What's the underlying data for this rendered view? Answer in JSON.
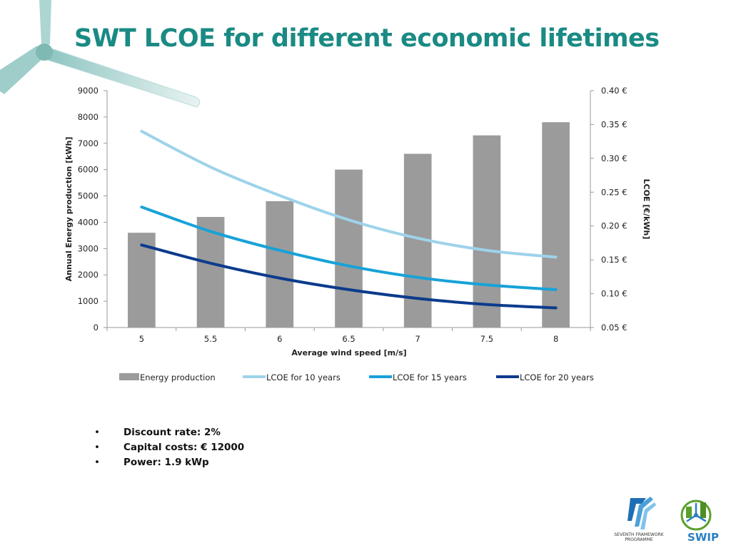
{
  "slide": {
    "title": "SWT LCOE for different economic lifetimes",
    "bullets": [
      "Discount rate: 2%",
      "Capital costs: € 12000",
      "Power: 1.9 kWp"
    ],
    "bullet_marker": "•"
  },
  "logos": {
    "fp7_text_line1": "SEVENTH FRAMEWORK",
    "fp7_text_line2": "PROGRAMME",
    "swip_text": "SWIP"
  },
  "colors": {
    "title": "#1a8a84",
    "bars": "#9b9b9b",
    "lcoe10": "#9dd3ea",
    "lcoe15": "#17a2d8",
    "lcoe20": "#0c3b8c"
  },
  "chart_data": {
    "type": "bar",
    "categories": [
      "5",
      "5.5",
      "6",
      "6.5",
      "7",
      "7.5",
      "8"
    ],
    "xlabel": "Average wind speed [m/s]",
    "ylabel": "Annual Energy production [kWh]",
    "y2label": "LCOE [€/kWh]",
    "ylim": [
      0,
      9000
    ],
    "yticks": [
      "0",
      "1000",
      "2000",
      "3000",
      "4000",
      "5000",
      "6000",
      "7000",
      "8000",
      "9000"
    ],
    "y2lim": [
      0.05,
      0.4
    ],
    "y2ticks": [
      "0.05 €",
      "0.10 €",
      "0.15 €",
      "0.20 €",
      "0.25 €",
      "0.30 €",
      "0.35 €",
      "0.40 €"
    ],
    "grid": false,
    "legend_position": "bottom",
    "series": [
      {
        "name": "Energy production",
        "type": "bar",
        "axis": "left",
        "values": [
          3600,
          4200,
          4800,
          6000,
          6600,
          7300,
          7800
        ]
      },
      {
        "name": "LCOE for 10 years",
        "type": "line",
        "axis": "right",
        "values": [
          0.34,
          0.287,
          0.245,
          0.209,
          0.182,
          0.164,
          0.154
        ]
      },
      {
        "name": "LCOE for 15 years",
        "type": "line",
        "axis": "right",
        "values": [
          0.228,
          0.192,
          0.164,
          0.141,
          0.124,
          0.113,
          0.106
        ]
      },
      {
        "name": "LCOE for 20 years",
        "type": "line",
        "axis": "right",
        "values": [
          0.172,
          0.145,
          0.123,
          0.106,
          0.093,
          0.084,
          0.079
        ]
      }
    ]
  }
}
